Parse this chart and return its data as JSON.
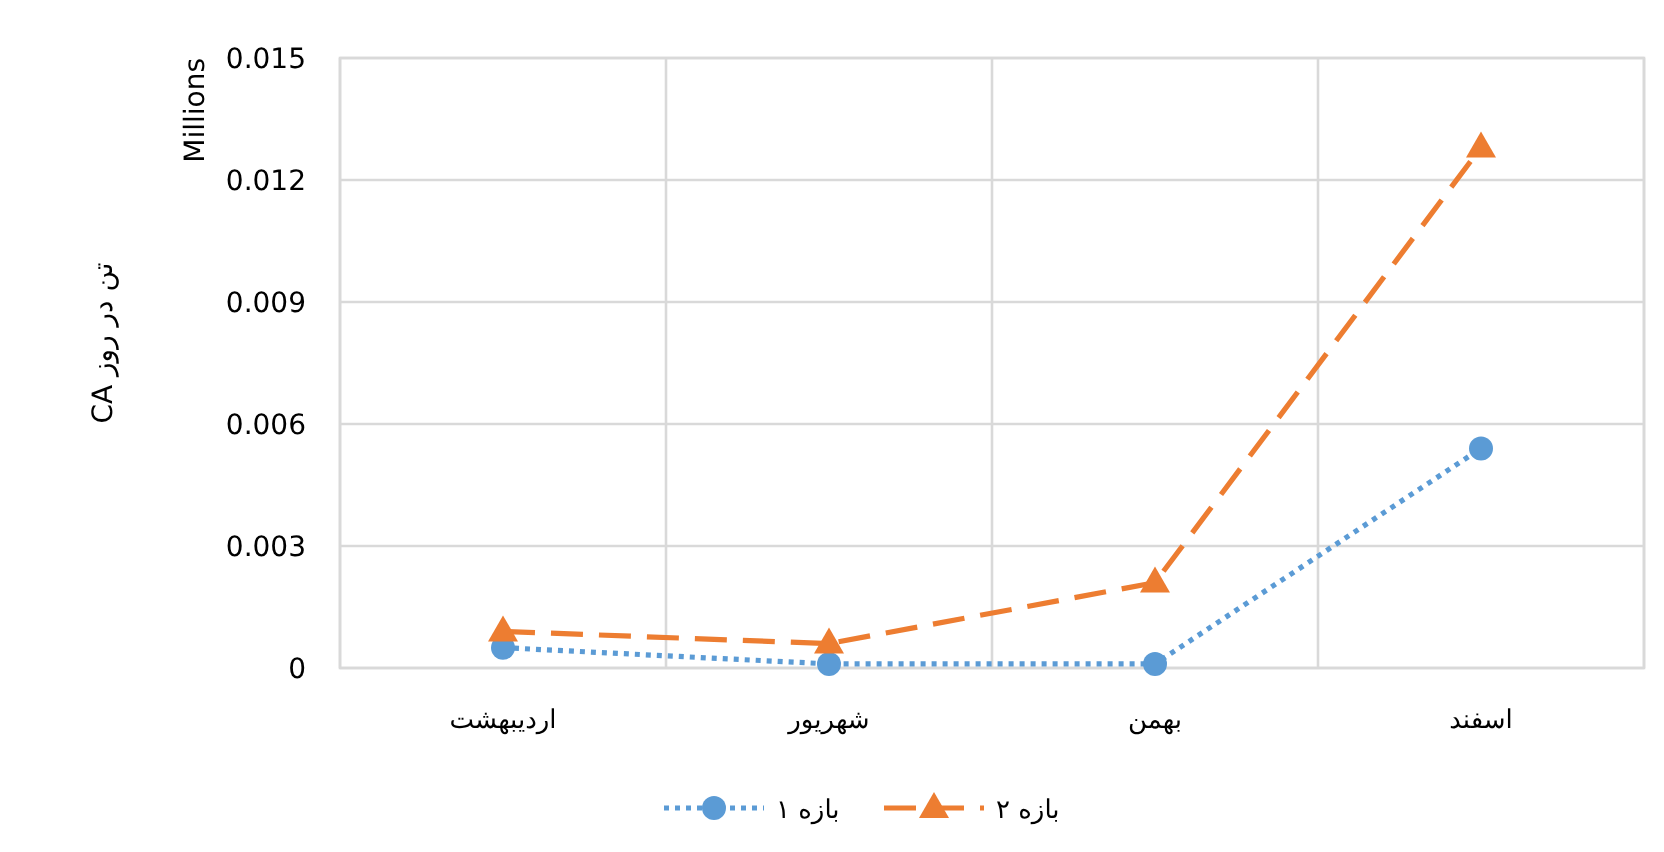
{
  "chart_data": {
    "type": "line",
    "ylabel": "تن در روز CA",
    "annotations": [
      "Millions"
    ],
    "categories": [
      "اردیبهشت",
      "شهریور",
      "بهمن",
      "اسفند"
    ],
    "series": [
      {
        "name": "بازه ۱",
        "color": "#5b9bd5",
        "values": [
          0.0005,
          0.0001,
          0.0001,
          0.0054
        ],
        "marker": "circle",
        "line_style": "dotted"
      },
      {
        "name": "بازه ۲",
        "color": "#ed7d31",
        "values": [
          0.0009,
          0.0006,
          0.0021,
          0.0128
        ],
        "marker": "triangle",
        "line_style": "dashed"
      }
    ],
    "ylim": [
      0,
      0.015
    ],
    "yticks": [
      0,
      0.003,
      0.006,
      0.009,
      0.012,
      0.015
    ],
    "grid": true,
    "legend": "bottom"
  }
}
